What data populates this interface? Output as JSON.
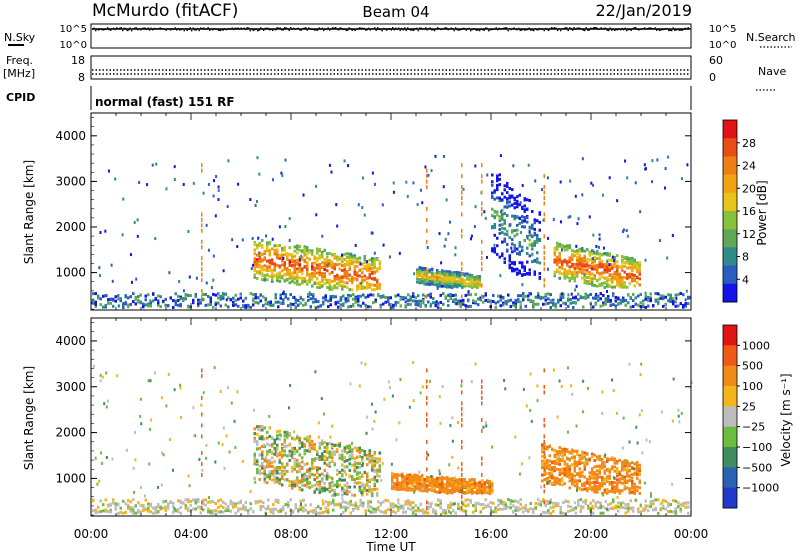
{
  "header": {
    "station": "McMurdo (fitACF)",
    "beam": "Beam 04",
    "date": "22/Jan/2019"
  },
  "top_panels": {
    "nsky_label": "N.Sky",
    "nsky_ticks": [
      "10^5",
      "10^0"
    ],
    "nsearch_label": "N.Search",
    "nsearch_ticks": [
      "10^5",
      "10^0"
    ],
    "freq_label": "Freq.",
    "freq_unit": "[MHz]",
    "freq_ticks": [
      "18",
      "8"
    ],
    "nave_label": "Nave",
    "nave_ticks": [
      "60",
      "0"
    ],
    "cpid_label": "CPID",
    "cpid_text": "normal (fast) 151 RF"
  },
  "chart_data": [
    {
      "type": "heatmap",
      "ylabel": "Slant Range [km]",
      "ylim": [
        180,
        4500
      ],
      "yticks": [
        1000,
        2000,
        3000,
        4000
      ],
      "xlim": [
        "00:00",
        "24:00"
      ],
      "colorbar": {
        "label": "Power [dB]",
        "ticks": [
          "4",
          "8",
          "12",
          "16",
          "20",
          "24",
          "28"
        ],
        "tick_values": [
          4,
          8,
          12,
          16,
          20,
          24,
          28
        ],
        "range": [
          0,
          32
        ],
        "colors": [
          "#1414e6",
          "#2a5dc2",
          "#2f8a8c",
          "#5fa858",
          "#88c23a",
          "#e8c31a",
          "#f2a313",
          "#f07e17",
          "#e84c17",
          "#e01414"
        ]
      },
      "features": [
        {
          "time_start": "06:30",
          "time_end": "11:30",
          "range_start": 650,
          "range_end": 1900,
          "level": "high"
        },
        {
          "time_start": "13:00",
          "time_end": "15:30",
          "range_start": 700,
          "range_end": 1200,
          "level": "medium"
        },
        {
          "time_start": "16:00",
          "time_end": "18:00",
          "range_start": 900,
          "range_end": 3600,
          "level": "low"
        },
        {
          "time_start": "18:30",
          "time_end": "22:00",
          "range_start": 700,
          "range_end": 1800,
          "level": "high"
        }
      ]
    },
    {
      "type": "heatmap",
      "ylabel": "Slant Range [km]",
      "ylim": [
        180,
        4500
      ],
      "yticks": [
        1000,
        2000,
        3000,
        4000
      ],
      "xlim": [
        "00:00",
        "24:00"
      ],
      "xticks": [
        "00:00",
        "04:00",
        "08:00",
        "12:00",
        "16:00",
        "20:00",
        "00:00"
      ],
      "xlabel": "Time UT",
      "colorbar": {
        "label": "Velocity [m s⁻¹]",
        "ticks": [
          "1000",
          "500",
          "100",
          "25",
          "−25",
          "−100",
          "−500",
          "−1000"
        ],
        "colors": [
          "#2238c8",
          "#2a62b4",
          "#3f8c5f",
          "#6bbd40",
          "#bdbdbd",
          "#f2b51a",
          "#f28a18",
          "#f05a17",
          "#e01414"
        ]
      },
      "features": [
        {
          "time_start": "06:30",
          "time_end": "11:30",
          "range_start": 650,
          "range_end": 2400,
          "level": "mixed green/orange"
        },
        {
          "time_start": "12:00",
          "time_end": "16:00",
          "range_start": 700,
          "range_end": 1200,
          "level": "orange"
        },
        {
          "time_start": "18:00",
          "time_end": "22:00",
          "range_start": 700,
          "range_end": 1900,
          "level": "orange"
        }
      ]
    }
  ]
}
